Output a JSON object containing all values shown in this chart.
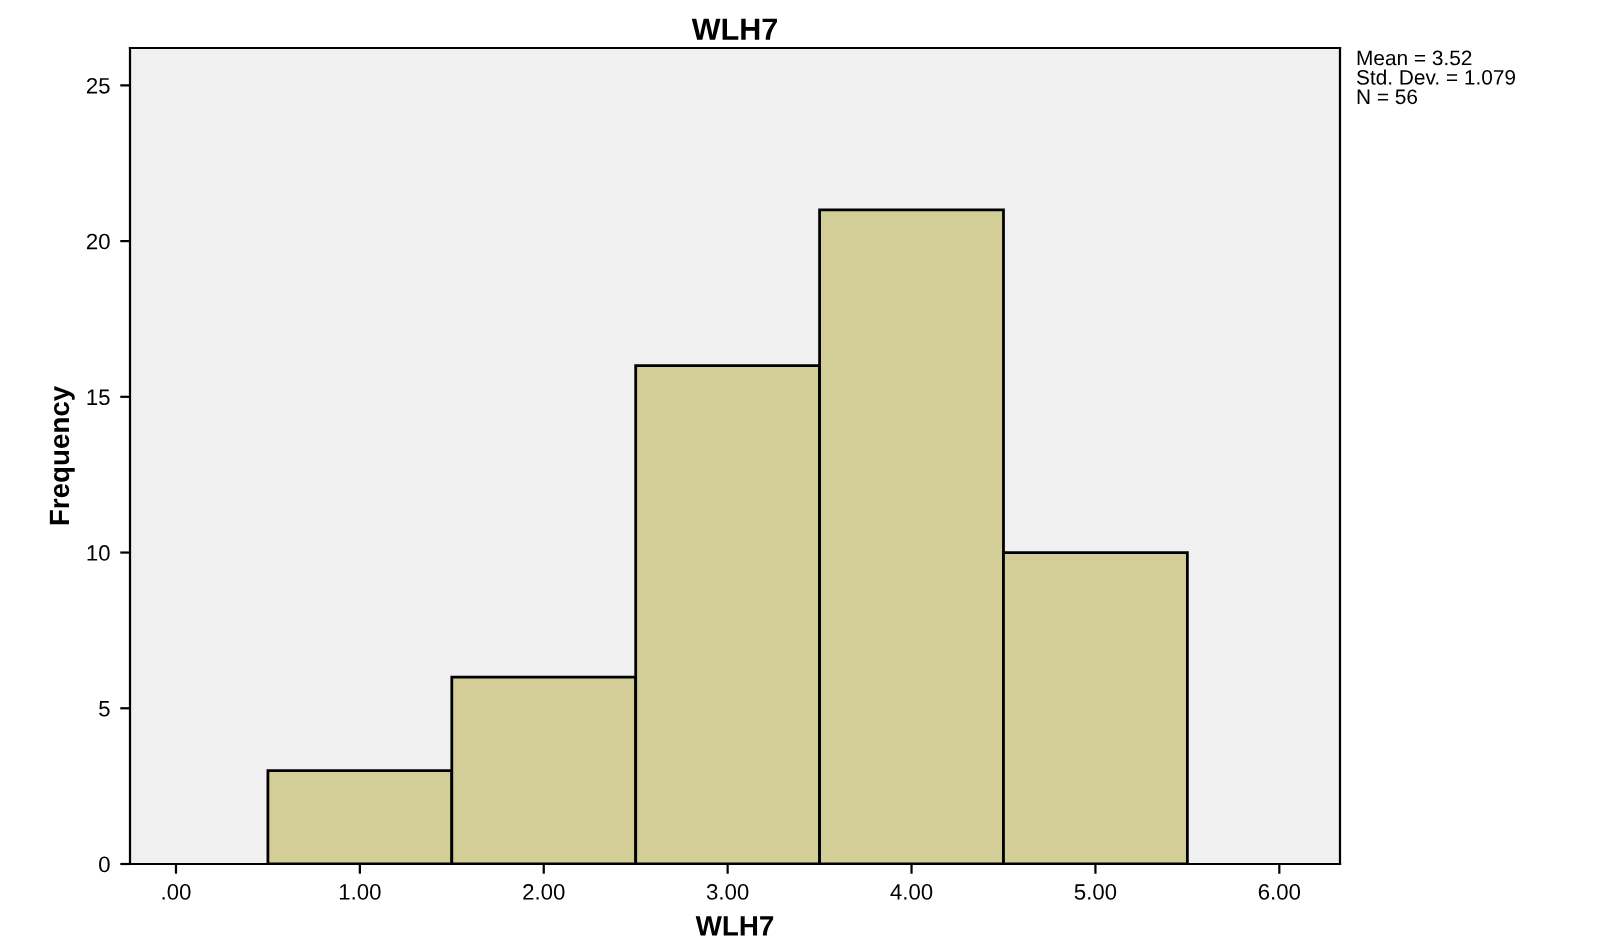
{
  "chart_data": {
    "type": "histogram",
    "title": "WLH7",
    "xlabel": "WLH7",
    "ylabel": "Frequency",
    "bins": [
      0.5,
      1.5,
      2.5,
      3.5,
      4.5,
      5.5
    ],
    "values": [
      3,
      6,
      16,
      21,
      10
    ],
    "color": "#d3ce98",
    "xlim": [
      -0.25,
      6.33
    ],
    "ylim": [
      0,
      26.2
    ],
    "xticks": [
      {
        "value": 0,
        "label": ".00"
      },
      {
        "value": 1,
        "label": "1.00"
      },
      {
        "value": 2,
        "label": "2.00"
      },
      {
        "value": 3,
        "label": "3.00"
      },
      {
        "value": 4,
        "label": "4.00"
      },
      {
        "value": 5,
        "label": "5.00"
      },
      {
        "value": 6,
        "label": "6.00"
      }
    ],
    "yticks": [
      0,
      5,
      10,
      15,
      20,
      25
    ],
    "annotations": [
      "Mean = 3.52",
      "Std. Dev. = 1.079",
      "N = 56"
    ],
    "grid": false,
    "legend": false
  }
}
